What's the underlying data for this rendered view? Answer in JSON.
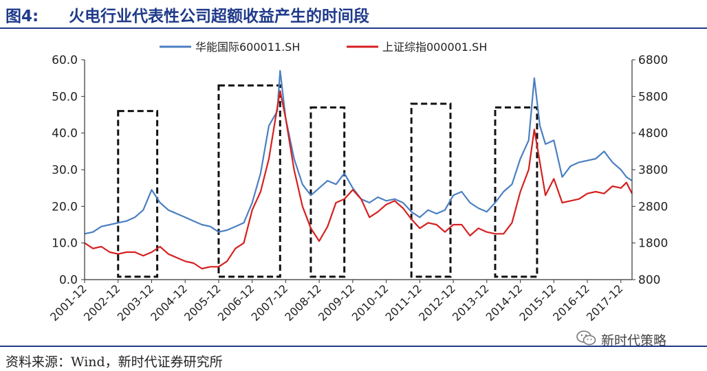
{
  "header": {
    "figure_no": "图4:",
    "title": "火电行业代表性公司超额收益产生的时间段"
  },
  "footer": {
    "source": "资料来源：Wind，新时代证券研究所",
    "brand": "新时代策略",
    "brand_icon": "wechat-icon"
  },
  "colors": {
    "series1": "#4a7fc1",
    "series2": "#d61f1f",
    "title": "#1f3a8a",
    "box": "#111111"
  },
  "chart_data": {
    "type": "line",
    "title": "",
    "xlabel": "",
    "ylabel": "",
    "y_left_lim": [
      0,
      60
    ],
    "y_left_ticks": [
      "0.0",
      "10.0",
      "20.0",
      "30.0",
      "40.0",
      "50.0",
      "60.0"
    ],
    "y_right_lim": [
      800,
      6800
    ],
    "y_right_ticks": [
      "800",
      "1800",
      "2800",
      "3800",
      "4800",
      "5800",
      "6800"
    ],
    "x_ticks": [
      "2001-12",
      "2002-12",
      "2003-12",
      "2004-12",
      "2005-12",
      "2006-12",
      "2007-12",
      "2008-12",
      "2009-12",
      "2010-12",
      "2011-12",
      "2012-12",
      "2013-12",
      "2014-12",
      "2015-12",
      "2016-12",
      "2017-12"
    ],
    "x_range": [
      "2001-12",
      "2018-04"
    ],
    "legend_position": "top",
    "grid": false,
    "series": [
      {
        "name": "华能国际600011.SH",
        "axis": "left",
        "x": [
          "2001-12",
          "2002-03",
          "2002-06",
          "2002-09",
          "2002-12",
          "2003-03",
          "2003-06",
          "2003-09",
          "2003-12",
          "2004-03",
          "2004-06",
          "2004-09",
          "2004-12",
          "2005-03",
          "2005-06",
          "2005-09",
          "2005-12",
          "2006-03",
          "2006-06",
          "2006-09",
          "2006-12",
          "2007-03",
          "2007-06",
          "2007-09",
          "2007-10",
          "2007-12",
          "2008-03",
          "2008-06",
          "2008-09",
          "2008-12",
          "2009-03",
          "2009-06",
          "2009-09",
          "2009-12",
          "2010-03",
          "2010-06",
          "2010-09",
          "2010-12",
          "2011-03",
          "2011-06",
          "2011-09",
          "2011-12",
          "2012-03",
          "2012-06",
          "2012-09",
          "2012-12",
          "2013-03",
          "2013-06",
          "2013-09",
          "2013-12",
          "2014-03",
          "2014-06",
          "2014-09",
          "2014-12",
          "2015-03",
          "2015-05",
          "2015-07",
          "2015-09",
          "2015-12",
          "2016-03",
          "2016-06",
          "2016-09",
          "2016-12",
          "2017-03",
          "2017-06",
          "2017-09",
          "2017-12",
          "2018-02",
          "2018-04"
        ],
        "y": [
          12.5,
          13.0,
          14.5,
          15.0,
          15.5,
          16.0,
          17.0,
          19.0,
          24.5,
          21.0,
          19.0,
          18.0,
          17.0,
          16.0,
          15.0,
          14.5,
          13.0,
          13.5,
          14.5,
          15.5,
          21.0,
          29.0,
          42.0,
          46.0,
          57.0,
          44.0,
          33.0,
          26.0,
          23.0,
          25.0,
          27.0,
          26.0,
          29.0,
          25.0,
          22.0,
          21.0,
          22.5,
          21.5,
          22.0,
          21.0,
          18.5,
          17.0,
          19.0,
          18.0,
          19.0,
          23.0,
          24.0,
          21.0,
          19.5,
          18.5,
          21.0,
          24.0,
          26.0,
          33.0,
          38.0,
          55.0,
          42.0,
          37.0,
          38.0,
          28.0,
          31.0,
          32.0,
          32.5,
          33.0,
          35.0,
          32.0,
          30.0,
          28.0,
          27.0
        ]
      },
      {
        "name": "上证综指000001.SH",
        "axis": "right",
        "x": [
          "2001-12",
          "2002-03",
          "2002-06",
          "2002-09",
          "2002-12",
          "2003-03",
          "2003-06",
          "2003-09",
          "2003-12",
          "2004-03",
          "2004-06",
          "2004-09",
          "2004-12",
          "2005-03",
          "2005-06",
          "2005-09",
          "2005-12",
          "2006-03",
          "2006-06",
          "2006-09",
          "2006-12",
          "2007-03",
          "2007-06",
          "2007-09",
          "2007-10",
          "2007-12",
          "2008-03",
          "2008-06",
          "2008-09",
          "2008-12",
          "2009-03",
          "2009-06",
          "2009-09",
          "2009-12",
          "2010-03",
          "2010-06",
          "2010-09",
          "2010-12",
          "2011-03",
          "2011-06",
          "2011-09",
          "2011-12",
          "2012-03",
          "2012-06",
          "2012-09",
          "2012-12",
          "2013-03",
          "2013-06",
          "2013-09",
          "2013-12",
          "2014-03",
          "2014-06",
          "2014-09",
          "2014-12",
          "2015-03",
          "2015-05",
          "2015-07",
          "2015-09",
          "2015-12",
          "2016-03",
          "2016-06",
          "2016-09",
          "2016-12",
          "2017-03",
          "2017-06",
          "2017-09",
          "2017-12",
          "2018-02",
          "2018-04"
        ],
        "y": [
          1800,
          1650,
          1700,
          1550,
          1500,
          1550,
          1550,
          1450,
          1550,
          1700,
          1500,
          1400,
          1300,
          1250,
          1100,
          1150,
          1150,
          1300,
          1650,
          1800,
          2700,
          3200,
          4100,
          5500,
          5950,
          5200,
          3800,
          2800,
          2200,
          1850,
          2250,
          2900,
          3000,
          3250,
          3000,
          2500,
          2650,
          2850,
          2950,
          2750,
          2450,
          2200,
          2350,
          2300,
          2100,
          2300,
          2300,
          2000,
          2200,
          2100,
          2050,
          2050,
          2350,
          3200,
          3800,
          4900,
          4000,
          3100,
          3550,
          2900,
          2950,
          3000,
          3150,
          3200,
          3150,
          3350,
          3300,
          3450,
          3150
        ]
      }
    ],
    "highlight_periods": [
      {
        "start": "2002-12",
        "end": "2004-02"
      },
      {
        "start": "2005-12",
        "end": "2007-10"
      },
      {
        "start": "2008-09",
        "end": "2009-09"
      },
      {
        "start": "2011-09",
        "end": "2012-11"
      },
      {
        "start": "2014-03",
        "end": "2015-06"
      }
    ],
    "highlight_tops": [
      46,
      53,
      47,
      48,
      47
    ]
  }
}
